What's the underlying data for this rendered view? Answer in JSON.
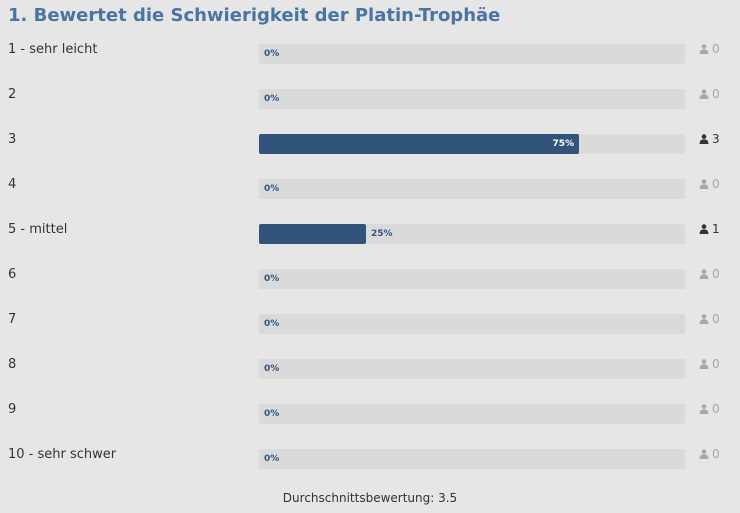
{
  "poll": {
    "title": "1. Bewertet die Schwierigkeit der Platin-Trophäe",
    "options": [
      {
        "label": "1 - sehr leicht",
        "percent_label": "0%",
        "percent": 0,
        "votes": "0"
      },
      {
        "label": "2",
        "percent_label": "0%",
        "percent": 0,
        "votes": "0"
      },
      {
        "label": "3",
        "percent_label": "75%",
        "percent": 75,
        "votes": "3"
      },
      {
        "label": "4",
        "percent_label": "0%",
        "percent": 0,
        "votes": "0"
      },
      {
        "label": "5 - mittel",
        "percent_label": "25%",
        "percent": 25,
        "votes": "1"
      },
      {
        "label": "6",
        "percent_label": "0%",
        "percent": 0,
        "votes": "0"
      },
      {
        "label": "7",
        "percent_label": "0%",
        "percent": 0,
        "votes": "0"
      },
      {
        "label": "8",
        "percent_label": "0%",
        "percent": 0,
        "votes": "0"
      },
      {
        "label": "9",
        "percent_label": "0%",
        "percent": 0,
        "votes": "0"
      },
      {
        "label": "10 - sehr schwer",
        "percent_label": "0%",
        "percent": 0,
        "votes": "0"
      }
    ],
    "average_label": "Durchschnittsbewertung:",
    "average_value": "3.5",
    "vote_icon": "user-icon"
  },
  "colors": {
    "accent": "#4a74a2",
    "bar": "#33547a",
    "track": "#dadada",
    "muted": "#a8a8a8"
  }
}
